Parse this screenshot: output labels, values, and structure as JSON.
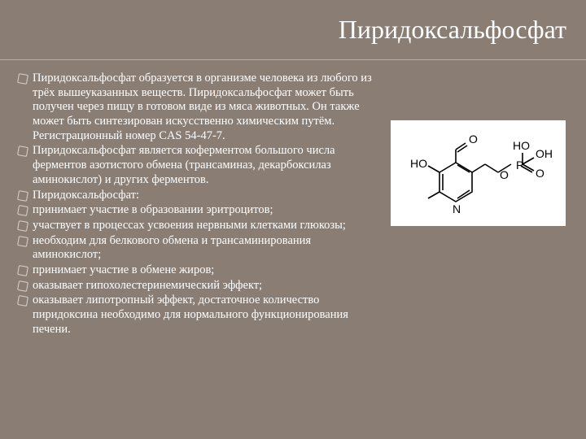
{
  "colors": {
    "background": "#8a7d74",
    "title_text": "#ffffff",
    "body_text": "#ffffff",
    "divider": "#b8aea6",
    "bullet_border": "#d8d2cc",
    "molecule_bg": "#ffffff",
    "molecule_stroke": "#000000"
  },
  "typography": {
    "title_fontsize": 32,
    "body_fontsize": 14.5,
    "font_family": "Georgia"
  },
  "title": "Пиридоксальфосфат",
  "bullets": [
    "Пиридоксальфосфат образуется в организме человека из любого из трёх вышеуказанных веществ. Пиридоксальфосфат может быть получен через пищу в готовом виде из мяса животных. Он также может быть синтезирован искусственно химическим путём. Регистрационный номер CAS 54-47-7.",
    "Пиридоксальфосфат является коферментом большого числа ферментов азотистого обмена (трансаминаз, декарбоксилаз аминокислот) и других ферментов.",
    "Пиридоксальфосфат:",
    "принимает участие в образовании эритроцитов;",
    "участвует в процессах усвоения нервными клетками глюкозы;",
    "необходим для белкового обмена и трансаминирования аминокислот;",
    "принимает участие в обмене жиров;",
    "оказывает гипохолестеринемический эффект;",
    "оказывает липотропный эффект, достаточное количество пиридоксина необходимо для нормального функционирования печени."
  ],
  "molecule": {
    "labels": {
      "o_top": "O",
      "ho_left": "HO",
      "ho_p": "HO",
      "oh_p": "OH",
      "p": "P",
      "o_pd": "O",
      "o_bridge": "O",
      "n": "N"
    }
  }
}
